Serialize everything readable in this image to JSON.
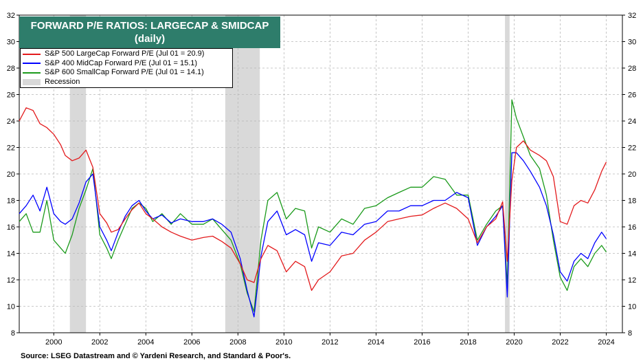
{
  "chart_data": {
    "type": "line",
    "title": "FORWARD P/E RATIOS: LARGECAP & SMIDCAP",
    "subtitle": "(daily)",
    "ylim": [
      8,
      32
    ],
    "yticks": [
      "8",
      "10",
      "12",
      "14",
      "16",
      "18",
      "20",
      "22",
      "24",
      "26",
      "28",
      "30",
      "32"
    ],
    "xlim": [
      1999.0,
      2025.2
    ],
    "xticks": [
      "2000",
      "2002",
      "2004",
      "2006",
      "2008",
      "2010",
      "2012",
      "2014",
      "2016",
      "2018",
      "2020",
      "2022",
      "2024"
    ],
    "source": "Source: LSEG Datastream and © Yardeni Research, and Standard & Poor's.",
    "legend_placement": "top-left",
    "recession_label": "Recession",
    "recessions": [
      [
        2001.2,
        2001.9
      ],
      [
        2007.95,
        2009.45
      ],
      [
        2020.1,
        2020.3
      ]
    ],
    "series": [
      {
        "name": "S&P 500 LargeCap Forward P/E (Jul 01 = 20.9)",
        "color": "#e31a1c",
        "x": [
          1999.0,
          1999.3,
          1999.6,
          1999.9,
          2000.2,
          2000.5,
          2000.8,
          2001.0,
          2001.3,
          2001.6,
          2001.9,
          2002.2,
          2002.5,
          2002.8,
          2003.0,
          2003.3,
          2003.6,
          2003.9,
          2004.2,
          2004.5,
          2004.8,
          2005.2,
          2005.6,
          2006.0,
          2006.5,
          2007.0,
          2007.4,
          2007.8,
          2008.2,
          2008.6,
          2008.9,
          2009.2,
          2009.5,
          2009.8,
          2010.2,
          2010.6,
          2011.0,
          2011.4,
          2011.7,
          2012.0,
          2012.5,
          2013.0,
          2013.5,
          2014.0,
          2014.5,
          2015.0,
          2015.5,
          2016.0,
          2016.5,
          2017.0,
          2017.5,
          2018.0,
          2018.5,
          2018.9,
          2019.3,
          2019.7,
          2020.0,
          2020.2,
          2020.4,
          2020.6,
          2020.9,
          2021.2,
          2021.6,
          2021.9,
          2022.2,
          2022.5,
          2022.8,
          2023.1,
          2023.4,
          2023.7,
          2024.0,
          2024.3,
          2024.5
        ],
        "y": [
          24.0,
          25.0,
          24.8,
          23.8,
          23.5,
          23.0,
          22.2,
          21.4,
          21.0,
          21.2,
          21.8,
          20.5,
          17.0,
          16.3,
          15.6,
          15.8,
          16.6,
          17.3,
          17.8,
          17.0,
          16.6,
          16.0,
          15.6,
          15.3,
          15.0,
          15.2,
          15.3,
          14.9,
          14.4,
          13.2,
          12.0,
          11.8,
          13.6,
          14.6,
          14.2,
          12.6,
          13.4,
          13.0,
          11.2,
          12.0,
          12.6,
          13.8,
          14.0,
          15.0,
          15.6,
          16.4,
          16.6,
          16.8,
          16.9,
          17.4,
          17.8,
          17.4,
          16.6,
          14.8,
          16.0,
          16.6,
          17.9,
          13.4,
          19.5,
          22.0,
          22.5,
          21.8,
          21.4,
          21.0,
          19.8,
          16.4,
          16.2,
          17.6,
          18.0,
          17.8,
          18.8,
          20.2,
          20.9
        ]
      },
      {
        "name": "S&P 400 MidCap Forward P/E (Jul 01 = 15.1)",
        "color": "#0000ff",
        "x": [
          1999.0,
          1999.3,
          1999.6,
          1999.9,
          2000.2,
          2000.5,
          2000.8,
          2001.0,
          2001.3,
          2001.6,
          2001.9,
          2002.2,
          2002.5,
          2002.8,
          2003.0,
          2003.3,
          2003.6,
          2003.9,
          2004.2,
          2004.5,
          2004.8,
          2005.2,
          2005.6,
          2006.0,
          2006.5,
          2007.0,
          2007.4,
          2007.8,
          2008.2,
          2008.6,
          2008.9,
          2009.2,
          2009.5,
          2009.8,
          2010.2,
          2010.6,
          2011.0,
          2011.4,
          2011.7,
          2012.0,
          2012.5,
          2013.0,
          2013.5,
          2014.0,
          2014.5,
          2015.0,
          2015.5,
          2016.0,
          2016.5,
          2017.0,
          2017.5,
          2018.0,
          2018.5,
          2018.9,
          2019.3,
          2019.7,
          2020.0,
          2020.2,
          2020.4,
          2020.6,
          2020.9,
          2021.2,
          2021.6,
          2021.9,
          2022.2,
          2022.5,
          2022.8,
          2023.1,
          2023.4,
          2023.7,
          2024.0,
          2024.3,
          2024.5
        ],
        "y": [
          17.0,
          17.6,
          18.4,
          17.2,
          19.0,
          17.0,
          16.4,
          16.2,
          16.6,
          17.8,
          19.4,
          20.0,
          16.0,
          15.0,
          14.2,
          15.6,
          16.8,
          17.6,
          18.0,
          17.2,
          16.6,
          16.9,
          16.3,
          16.6,
          16.4,
          16.4,
          16.6,
          16.2,
          15.6,
          13.6,
          11.2,
          9.2,
          13.8,
          16.4,
          17.2,
          15.4,
          15.8,
          15.4,
          13.4,
          14.8,
          14.6,
          15.6,
          15.4,
          16.2,
          16.4,
          17.2,
          17.2,
          17.6,
          17.6,
          18.0,
          18.0,
          18.6,
          18.2,
          14.6,
          16.0,
          16.8,
          17.6,
          10.7,
          21.6,
          21.6,
          21.0,
          20.2,
          19.0,
          17.6,
          15.4,
          12.6,
          11.9,
          13.4,
          14.0,
          13.6,
          14.8,
          15.6,
          15.1
        ]
      },
      {
        "name": "S&P 600 SmallCap Forward P/E (Jul 01 = 14.1)",
        "color": "#1a9a1a",
        "x": [
          1999.0,
          1999.3,
          1999.6,
          1999.9,
          2000.2,
          2000.5,
          2000.8,
          2001.0,
          2001.3,
          2001.6,
          2001.9,
          2002.2,
          2002.5,
          2002.8,
          2003.0,
          2003.3,
          2003.6,
          2003.9,
          2004.2,
          2004.5,
          2004.8,
          2005.2,
          2005.6,
          2006.0,
          2006.5,
          2007.0,
          2007.4,
          2007.8,
          2008.2,
          2008.6,
          2008.9,
          2009.2,
          2009.5,
          2009.8,
          2010.2,
          2010.6,
          2011.0,
          2011.4,
          2011.7,
          2012.0,
          2012.5,
          2013.0,
          2013.5,
          2014.0,
          2014.5,
          2015.0,
          2015.5,
          2016.0,
          2016.5,
          2017.0,
          2017.5,
          2018.0,
          2018.5,
          2018.9,
          2019.3,
          2019.7,
          2020.0,
          2020.2,
          2020.4,
          2020.6,
          2020.9,
          2021.2,
          2021.6,
          2021.9,
          2022.2,
          2022.5,
          2022.8,
          2023.1,
          2023.4,
          2023.7,
          2024.0,
          2024.3,
          2024.5
        ],
        "y": [
          16.4,
          17.0,
          15.6,
          15.6,
          18.0,
          15.0,
          14.4,
          14.0,
          15.4,
          17.4,
          18.8,
          20.4,
          15.4,
          14.4,
          13.6,
          15.0,
          16.2,
          17.4,
          17.8,
          17.4,
          16.4,
          17.0,
          16.2,
          17.0,
          16.2,
          16.2,
          16.6,
          15.8,
          15.0,
          13.2,
          11.0,
          9.6,
          15.0,
          18.0,
          18.6,
          16.6,
          17.4,
          17.2,
          14.4,
          16.0,
          15.6,
          16.6,
          16.2,
          17.4,
          17.6,
          18.2,
          18.6,
          19.0,
          19.0,
          19.8,
          19.6,
          18.4,
          18.4,
          15.0,
          16.2,
          17.2,
          17.6,
          11.5,
          25.6,
          24.2,
          22.8,
          21.4,
          20.4,
          18.4,
          15.0,
          12.2,
          11.2,
          13.0,
          13.6,
          13.0,
          14.0,
          14.6,
          14.1
        ]
      }
    ]
  }
}
